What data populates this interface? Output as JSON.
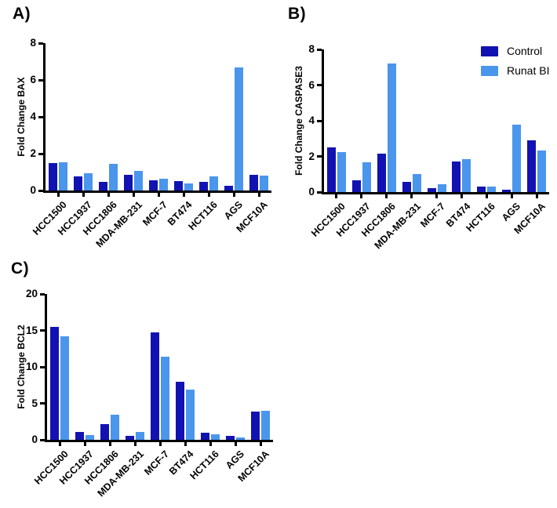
{
  "chart_data": [
    {
      "type": "bar",
      "panel_label": "A)",
      "ylabel": "Fold Change BAX",
      "xlabel": "",
      "ylim": [
        0,
        8
      ],
      "yticks": [
        0,
        2,
        4,
        6,
        8
      ],
      "grid": false,
      "categories": [
        "HCC1500",
        "HCC1937",
        "HCC1806",
        "MDA-MB-231",
        "MCF-7",
        "BT474",
        "HCT116",
        "AGS",
        "MCF10A"
      ],
      "series": [
        {
          "name": "Control",
          "color": "#1212B2",
          "values": [
            1.5,
            0.75,
            0.45,
            0.85,
            0.55,
            0.5,
            0.45,
            0.25,
            0.85
          ]
        },
        {
          "name": "Runat BI",
          "color": "#4A96EC",
          "values": [
            1.55,
            0.95,
            1.45,
            1.05,
            0.65,
            0.4,
            0.75,
            6.7,
            0.8
          ]
        }
      ]
    },
    {
      "type": "bar",
      "panel_label": "B)",
      "ylabel": "Fold Change CASPASE3",
      "xlabel": "",
      "ylim": [
        0,
        8
      ],
      "yticks": [
        0,
        2,
        4,
        6,
        8
      ],
      "grid": false,
      "categories": [
        "HCC1500",
        "HCC1937",
        "HCC1806",
        "MDA-MB-231",
        "MCF-7",
        "BT474",
        "HCT116",
        "AGS",
        "MCF10A"
      ],
      "series": [
        {
          "name": "Control",
          "color": "#1212B2",
          "values": [
            2.5,
            0.65,
            2.15,
            0.55,
            0.2,
            1.7,
            0.3,
            0.15,
            2.9
          ]
        },
        {
          "name": "Runat BI",
          "color": "#4A96EC",
          "values": [
            2.25,
            1.65,
            7.2,
            1.0,
            0.45,
            1.85,
            0.3,
            3.8,
            2.35
          ]
        }
      ]
    },
    {
      "type": "bar",
      "panel_label": "C)",
      "ylabel": "Fold Change BCL2",
      "xlabel": "",
      "ylim": [
        0,
        20
      ],
      "yticks": [
        0,
        5,
        10,
        15,
        20
      ],
      "grid": false,
      "categories": [
        "HCC1500",
        "HCC1937",
        "HCC1806",
        "MDA-MB-231",
        "MCF-7",
        "BT474",
        "HCT116",
        "AGS",
        "MCF10A"
      ],
      "series": [
        {
          "name": "Control",
          "color": "#1212B2",
          "values": [
            15.5,
            1.1,
            2.2,
            0.5,
            14.7,
            8.0,
            0.95,
            0.5,
            3.9
          ]
        },
        {
          "name": "Runat BI",
          "color": "#4A96EC",
          "values": [
            14.2,
            0.6,
            3.4,
            1.05,
            11.4,
            6.9,
            0.7,
            0.35,
            3.95
          ]
        }
      ]
    }
  ],
  "legend": {
    "position": "top-right-of-panel-b",
    "items": [
      {
        "label": "Control",
        "color": "#1212B2"
      },
      {
        "label": "Runat BI",
        "color": "#4A96EC"
      }
    ]
  },
  "colors": {
    "axis": "#000000",
    "background": "#ffffff",
    "control_bar": "#1212B2",
    "runat_bi_bar": "#4A96EC"
  }
}
